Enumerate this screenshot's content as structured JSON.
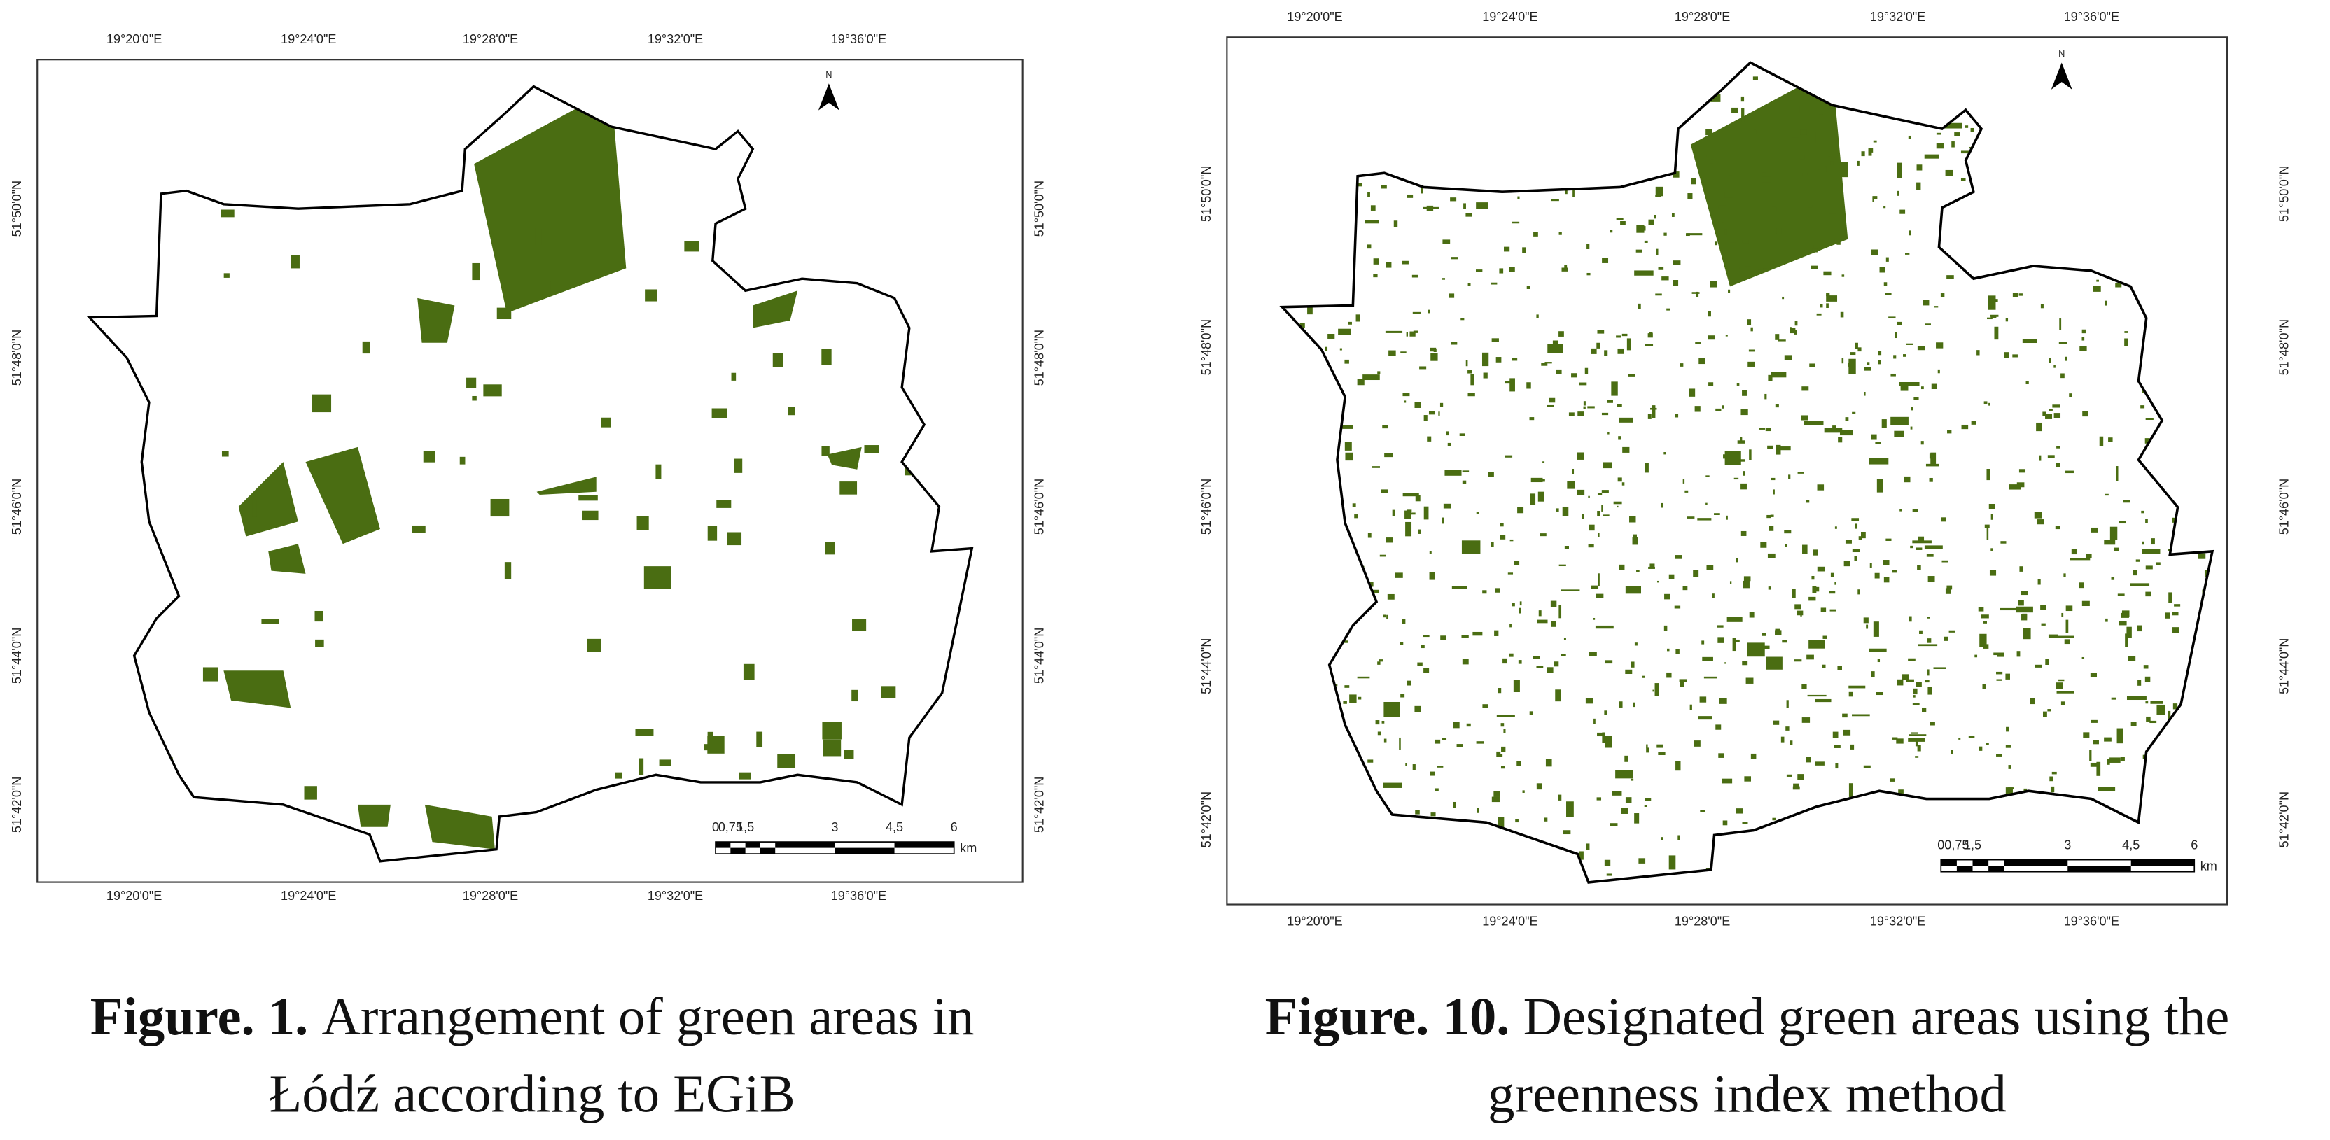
{
  "figures": [
    {
      "map": {
        "top_labels": [
          "19°20'0\"E",
          "19°24'0\"E",
          "19°28'0\"E",
          "19°32'0\"E",
          "19°36'0\"E"
        ],
        "bottom_labels": [
          "19°20'0\"E",
          "19°24'0\"E",
          "19°28'0\"E",
          "19°32'0\"E",
          "19°36'0\"E"
        ],
        "left_labels": [
          "51°50'0\"N",
          "51°48'0\"N",
          "51°46'0\"N",
          "51°44'0\"N",
          "51°42'0\"N"
        ],
        "right_labels": [
          "51°50'0\"N",
          "51°48'0\"N",
          "51°46'0\"N",
          "51°44'0\"N",
          "51°42'0\"N"
        ],
        "north": "N",
        "scale_labels": [
          "0",
          "0,75",
          "1,5",
          "3",
          "4,5",
          "6"
        ],
        "scale_unit": "km"
      },
      "caption": {
        "label": "Figure. 1.",
        "line1": "Arrangement of green areas in",
        "line2": "Łódź according to EGiB"
      }
    },
    {
      "map": {
        "top_labels": [
          "19°20'0\"E",
          "19°24'0\"E",
          "19°28'0\"E",
          "19°32'0\"E",
          "19°36'0\"E"
        ],
        "bottom_labels": [
          "19°20'0\"E",
          "19°24'0\"E",
          "19°28'0\"E",
          "19°32'0\"E",
          "19°36'0\"E"
        ],
        "left_labels": [
          "51°50'0\"N",
          "51°48'0\"N",
          "51°46'0\"N",
          "51°44'0\"N",
          "51°42'0\"N"
        ],
        "right_labels": [
          "51°50'0\"N",
          "51°48'0\"N",
          "51°46'0\"N",
          "51°44'0\"N",
          "51°42'0\"N"
        ],
        "north": "N",
        "scale_labels": [
          "0",
          "0,75",
          "1,5",
          "3",
          "4,5",
          "6"
        ],
        "scale_unit": "km"
      },
      "caption": {
        "label": "Figure. 10.",
        "line1": "Designated green areas using the",
        "line2": "greenness index method"
      }
    }
  ]
}
